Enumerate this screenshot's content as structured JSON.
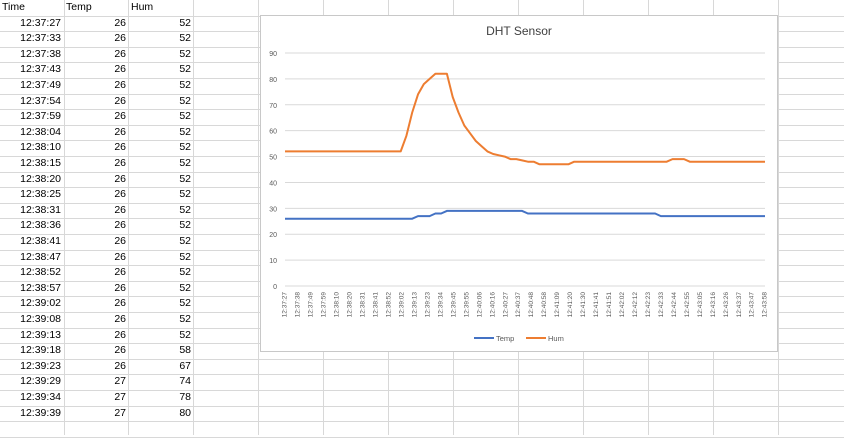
{
  "sheet": {
    "headers": [
      "Time",
      "Temp",
      "Hum"
    ],
    "rows": [
      [
        "12:37:27",
        "26",
        "52"
      ],
      [
        "12:37:33",
        "26",
        "52"
      ],
      [
        "12:37:38",
        "26",
        "52"
      ],
      [
        "12:37:43",
        "26",
        "52"
      ],
      [
        "12:37:49",
        "26",
        "52"
      ],
      [
        "12:37:54",
        "26",
        "52"
      ],
      [
        "12:37:59",
        "26",
        "52"
      ],
      [
        "12:38:04",
        "26",
        "52"
      ],
      [
        "12:38:10",
        "26",
        "52"
      ],
      [
        "12:38:15",
        "26",
        "52"
      ],
      [
        "12:38:20",
        "26",
        "52"
      ],
      [
        "12:38:25",
        "26",
        "52"
      ],
      [
        "12:38:31",
        "26",
        "52"
      ],
      [
        "12:38:36",
        "26",
        "52"
      ],
      [
        "12:38:41",
        "26",
        "52"
      ],
      [
        "12:38:47",
        "26",
        "52"
      ],
      [
        "12:38:52",
        "26",
        "52"
      ],
      [
        "12:38:57",
        "26",
        "52"
      ],
      [
        "12:39:02",
        "26",
        "52"
      ],
      [
        "12:39:08",
        "26",
        "52"
      ],
      [
        "12:39:13",
        "26",
        "52"
      ],
      [
        "12:39:18",
        "26",
        "58"
      ],
      [
        "12:39:23",
        "26",
        "67"
      ],
      [
        "12:39:29",
        "27",
        "74"
      ],
      [
        "12:39:34",
        "27",
        "78"
      ],
      [
        "12:39:39",
        "27",
        "80"
      ]
    ]
  },
  "chart_data": {
    "type": "line",
    "title": "DHT Sensor",
    "ylim": [
      0,
      90
    ],
    "yticks": [
      0,
      10,
      20,
      30,
      40,
      50,
      60,
      70,
      80,
      90
    ],
    "grid": true,
    "legend": "bottom",
    "x_tick_labels": [
      "12:37:27",
      "12:37:38",
      "12:37:49",
      "12:37:59",
      "12:38:10",
      "12:38:20",
      "12:38:31",
      "12:38:41",
      "12:38:52",
      "12:39:02",
      "12:39:13",
      "12:39:23",
      "12:39:34",
      "12:39:45",
      "12:39:55",
      "12:40:06",
      "12:40:16",
      "12:40:27",
      "12:40:37",
      "12:40:48",
      "12:40:58",
      "12:41:09",
      "12:41:20",
      "12:41:30",
      "12:41:41",
      "12:41:51",
      "12:42:02",
      "12:42:12",
      "12:42:23",
      "12:42:33",
      "12:42:44",
      "12:42:55",
      "12:43:05",
      "12:43:16",
      "12:43:26",
      "12:43:37",
      "12:43:47",
      "12:43:58"
    ],
    "series": [
      {
        "name": "Temp",
        "color": "#4472C4",
        "values": [
          26,
          26,
          26,
          26,
          26,
          26,
          26,
          26,
          26,
          26,
          26,
          26,
          26,
          26,
          26,
          26,
          26,
          26,
          26,
          26,
          26,
          26,
          26,
          27,
          27,
          27,
          28,
          28,
          29,
          29,
          29,
          29,
          29,
          29,
          29,
          29,
          29,
          29,
          29,
          29,
          29,
          29,
          28,
          28,
          28,
          28,
          28,
          28,
          28,
          28,
          28,
          28,
          28,
          28,
          28,
          28,
          28,
          28,
          28,
          28,
          28,
          28,
          28,
          28,
          28,
          27,
          27,
          27,
          27,
          27,
          27,
          27,
          27,
          27,
          27,
          27,
          27,
          27,
          27,
          27,
          27,
          27,
          27,
          27
        ]
      },
      {
        "name": "Hum",
        "color": "#ED7D31",
        "values": [
          52,
          52,
          52,
          52,
          52,
          52,
          52,
          52,
          52,
          52,
          52,
          52,
          52,
          52,
          52,
          52,
          52,
          52,
          52,
          52,
          52,
          58,
          67,
          74,
          78,
          80,
          82,
          82,
          82,
          73,
          67,
          62,
          59,
          56,
          54,
          52,
          51,
          50.5,
          50,
          49,
          49,
          48.5,
          48,
          48,
          47,
          47,
          47,
          47,
          47,
          47,
          48,
          48,
          48,
          48,
          48,
          48,
          48,
          48,
          48,
          48,
          48,
          48,
          48,
          48,
          48,
          48,
          48,
          49,
          49,
          49,
          48,
          48,
          48,
          48,
          48,
          48,
          48,
          48,
          48,
          48,
          48,
          48,
          48,
          48
        ]
      }
    ]
  },
  "colors": {
    "grid_line": "#d8d8d8",
    "chart_border": "#c8c8c8"
  }
}
